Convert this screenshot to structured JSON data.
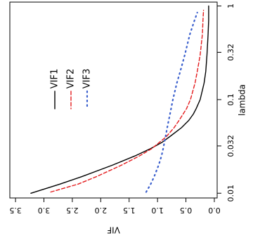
{
  "chart_data": {
    "type": "line",
    "orientation": "rotated-90-clockwise",
    "xlabel": "lambda",
    "ylabel": "VIF",
    "x_scale": "log",
    "x_ticks": [
      {
        "value": 0.01,
        "label": "0.01"
      },
      {
        "value": 0.032,
        "label": "0.032"
      },
      {
        "value": 0.1,
        "label": "0.1"
      },
      {
        "value": 0.32,
        "label": "0.32"
      },
      {
        "value": 1,
        "label": "1"
      }
    ],
    "y_ticks": [
      {
        "value": 0.0,
        "label": "0.0"
      },
      {
        "value": 0.5,
        "label": "0.5"
      },
      {
        "value": 1.0,
        "label": "1.0"
      },
      {
        "value": 1.5,
        "label": "1.5"
      },
      {
        "value": 2.0,
        "label": "2.0"
      },
      {
        "value": 2.5,
        "label": "2.5"
      },
      {
        "value": 3.0,
        "label": "3.0"
      },
      {
        "value": 3.5,
        "label": "3.5"
      }
    ],
    "xlim": [
      0.0089,
      1.1
    ],
    "ylim": [
      -0.05,
      3.6
    ],
    "grid": false,
    "legend_position": "top-left",
    "series": [
      {
        "name": "VIF1",
        "color": "#000000",
        "line_style": "solid",
        "x": [
          0.01,
          0.0125,
          0.015,
          0.02,
          0.025,
          0.03,
          0.035,
          0.04,
          0.05,
          0.06,
          0.07,
          0.08,
          0.1,
          0.15,
          0.2,
          0.3,
          0.5,
          0.7,
          1.0
        ],
        "values": [
          3.23,
          2.72,
          2.34,
          1.79,
          1.4,
          1.12,
          0.92,
          0.79,
          0.58,
          0.45,
          0.37,
          0.32,
          0.25,
          0.18,
          0.15,
          0.13,
          0.11,
          0.1,
          0.1
        ]
      },
      {
        "name": "VIF2",
        "color": "#e41a1c",
        "line_style": "dashed",
        "x": [
          0.0103,
          0.0125,
          0.015,
          0.02,
          0.025,
          0.03,
          0.04,
          0.05,
          0.06,
          0.07,
          0.08,
          0.1,
          0.15,
          0.2,
          0.3,
          0.5,
          0.7,
          0.9
        ],
        "values": [
          2.88,
          2.4,
          2.08,
          1.63,
          1.32,
          1.1,
          0.85,
          0.71,
          0.62,
          0.55,
          0.49,
          0.42,
          0.34,
          0.3,
          0.25,
          0.21,
          0.2,
          0.19
        ]
      },
      {
        "name": "VIF3",
        "color": "#3a5fcd",
        "line_style": "dotted",
        "x": [
          0.0103,
          0.0125,
          0.015,
          0.02,
          0.025,
          0.03,
          0.04,
          0.05,
          0.07,
          0.1,
          0.15,
          0.2,
          0.3,
          0.5,
          0.7,
          0.85
        ],
        "values": [
          1.2,
          1.12,
          1.06,
          0.98,
          0.93,
          0.9,
          0.86,
          0.83,
          0.78,
          0.73,
          0.66,
          0.6,
          0.52,
          0.43,
          0.35,
          0.3
        ]
      }
    ]
  }
}
